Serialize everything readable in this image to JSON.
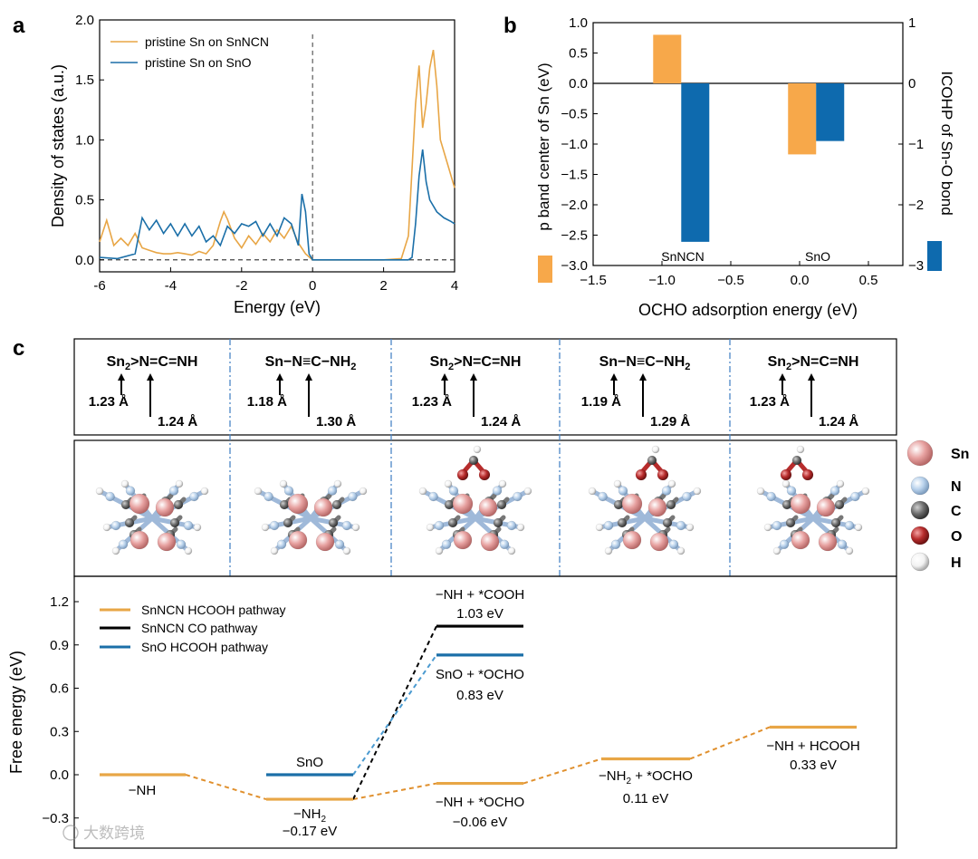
{
  "panel_labels": {
    "a": "a",
    "b": "b",
    "c": "c"
  },
  "colors": {
    "orange": "#E8A646",
    "orange_bar": "#F7A84A",
    "blue": "#1B6FA8",
    "blue_bar": "#0E6AAE",
    "black": "#000000",
    "dash_orange": "#E0902E",
    "dash_blue": "#4A9AD0",
    "sn": "#E7A1A0",
    "n": "#B9D2EC",
    "c": "#6E6E6E",
    "o": "#B72C2C",
    "h": "#F2F2F2"
  },
  "chart_data": [
    {
      "panel": "a",
      "type": "line",
      "xlabel": "Energy (eV)",
      "ylabel": "Density of states (a.u.)",
      "xlim": [
        -6,
        4
      ],
      "ylim": [
        -0.1,
        2.0
      ],
      "xticks": [
        -6,
        -4,
        -2,
        0,
        2,
        4
      ],
      "yticks": [
        0.0,
        0.5,
        1.0,
        1.5,
        2.0
      ],
      "xtick_labels": [
        "-6",
        "-4",
        "-2",
        "0",
        "2",
        "4"
      ],
      "ytick_labels": [
        "0.0",
        "0.5",
        "1.0",
        "1.5",
        "2.0"
      ],
      "legend_position": "top-left",
      "series": [
        {
          "name": "pristine Sn on SnNCN",
          "color": "#E8A646",
          "x": [
            -6.0,
            -5.8,
            -5.6,
            -5.4,
            -5.2,
            -5.0,
            -4.8,
            -4.6,
            -4.4,
            -4.2,
            -4.0,
            -3.8,
            -3.6,
            -3.4,
            -3.2,
            -3.0,
            -2.8,
            -2.6,
            -2.5,
            -2.4,
            -2.2,
            -2.0,
            -1.8,
            -1.6,
            -1.4,
            -1.2,
            -1.0,
            -0.8,
            -0.6,
            -0.4,
            -0.2,
            0.0,
            0.5,
            1.0,
            1.5,
            2.0,
            2.5,
            2.7,
            2.9,
            3.0,
            3.1,
            3.2,
            3.3,
            3.4,
            3.5,
            3.6,
            3.8,
            4.0
          ],
          "y": [
            0.15,
            0.33,
            0.12,
            0.18,
            0.12,
            0.22,
            0.1,
            0.08,
            0.06,
            0.05,
            0.05,
            0.06,
            0.05,
            0.04,
            0.07,
            0.05,
            0.12,
            0.32,
            0.4,
            0.34,
            0.18,
            0.1,
            0.2,
            0.13,
            0.22,
            0.15,
            0.25,
            0.18,
            0.28,
            0.14,
            0.05,
            0.0,
            0.0,
            0.0,
            0.0,
            0.0,
            0.01,
            0.2,
            1.3,
            1.62,
            1.1,
            1.3,
            1.6,
            1.75,
            1.45,
            1.0,
            0.8,
            0.6
          ]
        },
        {
          "name": "pristine Sn on SnO",
          "color": "#1B6FA8",
          "x": [
            -6.0,
            -5.5,
            -5.0,
            -4.9,
            -4.8,
            -4.6,
            -4.4,
            -4.2,
            -4.0,
            -3.8,
            -3.6,
            -3.4,
            -3.2,
            -3.0,
            -2.8,
            -2.6,
            -2.4,
            -2.2,
            -2.0,
            -1.8,
            -1.6,
            -1.4,
            -1.2,
            -1.0,
            -0.8,
            -0.6,
            -0.4,
            -0.3,
            -0.2,
            -0.1,
            0.0,
            0.5,
            1.0,
            1.5,
            2.0,
            2.5,
            2.7,
            2.8,
            2.9,
            3.0,
            3.1,
            3.2,
            3.3,
            3.5,
            3.7,
            3.9,
            4.0
          ],
          "y": [
            0.02,
            0.01,
            0.05,
            0.2,
            0.35,
            0.25,
            0.33,
            0.22,
            0.3,
            0.2,
            0.3,
            0.2,
            0.28,
            0.15,
            0.2,
            0.12,
            0.28,
            0.22,
            0.3,
            0.28,
            0.32,
            0.2,
            0.3,
            0.2,
            0.35,
            0.3,
            0.12,
            0.55,
            0.4,
            0.05,
            0.0,
            0.0,
            0.0,
            0.0,
            0.0,
            0.0,
            0.0,
            0.02,
            0.3,
            0.7,
            0.92,
            0.65,
            0.5,
            0.4,
            0.35,
            0.32,
            0.3
          ]
        }
      ]
    },
    {
      "panel": "b",
      "type": "bar",
      "xlabel": "OCHO adsorption energy (eV)",
      "ylabel_left": "p band center of Sn (eV)",
      "ylabel_right": "ICOHP of Sn-O bond",
      "xlim": [
        -1.5,
        0.75
      ],
      "ylim_left": [
        -3.0,
        1.0
      ],
      "ylim_right": [
        -3.0,
        1.0
      ],
      "xticks": [
        -1.5,
        -1.0,
        -0.5,
        0.0,
        0.5
      ],
      "xtick_labels": [
        "−1.5",
        "−1.0",
        "−0.5",
        "0.0",
        "0.5"
      ],
      "yticks_left": [
        1.0,
        0.5,
        0.0,
        -0.5,
        -1.0,
        -1.5,
        -2.0,
        -2.5,
        -3.0
      ],
      "ytick_labels_left": [
        "1.0",
        "0.5",
        "0.0",
        "−0.5",
        "−1.0",
        "−1.5",
        "−2.0",
        "−2.5",
        "−3.0"
      ],
      "yticks_right": [
        1,
        0,
        -1,
        -2,
        -3
      ],
      "ytick_labels_right": [
        "1",
        "0",
        "−1",
        "−2",
        "−3"
      ],
      "categories": [
        "SnNCN",
        "SnO"
      ],
      "category_x": [
        -0.86,
        0.12
      ],
      "series": [
        {
          "axis": "left",
          "color": "#F7A84A",
          "values": [
            0.8,
            -1.17
          ]
        },
        {
          "axis": "right",
          "color": "#0E6AAE",
          "values": [
            -2.61,
            -0.95
          ]
        }
      ]
    },
    {
      "panel": "c",
      "type": "line",
      "subtype": "free-energy-diagram",
      "ylabel": "Free energy (eV)",
      "ylim": [
        -0.3,
        1.35
      ],
      "yticks": [
        -0.3,
        0.0,
        0.3,
        0.6,
        0.9,
        1.2
      ],
      "ytick_labels": [
        "−0.3",
        "0.0",
        "0.3",
        "0.6",
        "0.9",
        "1.2"
      ],
      "legend_position": "top-left",
      "legend": [
        {
          "label": "SnNCN HCOOH pathway",
          "color": "#E8A646"
        },
        {
          "label": "SnNCN CO pathway",
          "color": "#000000"
        },
        {
          "label": "SnO HCOOH pathway",
          "color": "#1B6FA8"
        }
      ],
      "steps": [
        {
          "id": "s1",
          "series": "orange",
          "value": 0.0,
          "label": "−NH",
          "value_label": ""
        },
        {
          "id": "s2",
          "series": "orange",
          "value": -0.17,
          "label": "−NH2",
          "value_label": "−0.17 eV"
        },
        {
          "id": "s2b",
          "series": "blue",
          "value": 0.0,
          "label": "SnO",
          "value_label": ""
        },
        {
          "id": "s3",
          "series": "black",
          "value": 1.03,
          "label": "−NH + *COOH",
          "value_label": "1.03 eV"
        },
        {
          "id": "s3b",
          "series": "blue",
          "value": 0.83,
          "label": "SnO + *OCHO",
          "value_label": "0.83 eV"
        },
        {
          "id": "s3c",
          "series": "orange",
          "value": -0.06,
          "label": "−NH + *OCHO",
          "value_label": "−0.06 eV"
        },
        {
          "id": "s4",
          "series": "orange",
          "value": 0.11,
          "label": "−NH2 + *OCHO",
          "value_label": "0.11 eV"
        },
        {
          "id": "s5",
          "series": "orange",
          "value": 0.33,
          "label": "−NH + HCOOH",
          "value_label": "0.33 eV"
        }
      ]
    }
  ],
  "structures": [
    {
      "formula_main": "Sn",
      "formula_sub": "2",
      "formula_rest": ">N=C=NH",
      "bond1": "1.23 Å",
      "bond2": "1.24 Å"
    },
    {
      "formula_main": "Sn−N≡C−NH",
      "formula_sub": "2",
      "formula_rest": "",
      "bond1": "1.18 Å",
      "bond2": "1.30 Å"
    },
    {
      "formula_main": "Sn",
      "formula_sub": "2",
      "formula_rest": ">N=C=NH",
      "bond1": "1.23 Å",
      "bond2": "1.24 Å"
    },
    {
      "formula_main": "Sn−N≡C−NH",
      "formula_sub": "2",
      "formula_rest": "",
      "bond1": "1.19 Å",
      "bond2": "1.29 Å"
    },
    {
      "formula_main": "Sn",
      "formula_sub": "2",
      "formula_rest": ">N=C=NH",
      "bond1": "1.23 Å",
      "bond2": "1.24 Å"
    }
  ],
  "atom_legend": [
    {
      "symbol": "Sn",
      "color": "#E7A1A0"
    },
    {
      "symbol": "N",
      "color": "#B9D2EC"
    },
    {
      "symbol": "C",
      "color": "#6E6E6E"
    },
    {
      "symbol": "O",
      "color": "#B72C2C"
    },
    {
      "symbol": "H",
      "color": "#F2F2F2"
    }
  ],
  "watermark": "大数跨境"
}
